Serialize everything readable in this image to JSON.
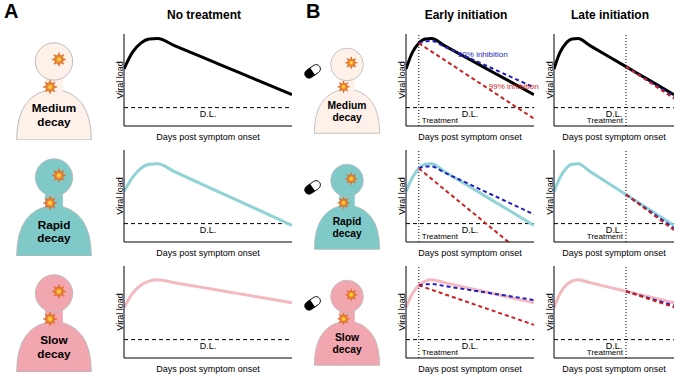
{
  "panel_labels": [
    "A",
    "B"
  ],
  "rows": [
    {
      "label": "Medium decay",
      "color": "#fdf1ea"
    },
    {
      "label": "Rapid decay",
      "color": "#7fc9c9"
    },
    {
      "label": "Slow decay",
      "color": "#f2a6b0"
    }
  ],
  "chart_data": [
    {
      "type": "line",
      "title": "No treatment",
      "x_label": "Days post symptom onset",
      "y_label": "Viral load",
      "x": [
        0,
        0.5,
        1,
        1.5,
        2,
        3,
        6,
        8,
        10
      ],
      "xlim": [
        0,
        10
      ],
      "ylim": [
        0,
        10
      ],
      "tick_labels": false,
      "series": [
        {
          "color": "#000000",
          "line_style": "solid",
          "values": [
            6.2,
            8.0,
            9.0,
            9.45,
            9.5,
            8.74,
            6.45,
            4.93,
            3.4
          ]
        }
      ],
      "annotations": [
        {
          "text": "D.L.",
          "y": 2,
          "line_style": "dashed"
        }
      ]
    },
    {
      "type": "line",
      "title": "Early initiation",
      "x_label": "Days post symptom onset",
      "y_label": "Viral load",
      "x": [
        0,
        0.5,
        1,
        1.5,
        2,
        3,
        6,
        8,
        10
      ],
      "xlim": [
        0,
        10
      ],
      "ylim": [
        0,
        10
      ],
      "tick_labels": false,
      "series": [
        {
          "color": "#000000",
          "line_style": "solid",
          "values": [
            6.2,
            8.0,
            9.0,
            9.45,
            9.5,
            8.74,
            6.45,
            4.93,
            3.4
          ]
        },
        {
          "name": "50% inhibition",
          "color": "#1f1fbf",
          "line_style": "dashed",
          "values": [
            null,
            null,
            9.0,
            9.2,
            9.25,
            8.62,
            6.73,
            5.46,
            4.2
          ]
        },
        {
          "name": "99% inhibition",
          "color": "#cc1f1f",
          "line_style": "dashed",
          "values": [
            null,
            null,
            9.0,
            8.54,
            8.09,
            7.18,
            4.44,
            2.62,
            0.8
          ]
        }
      ],
      "annotations": [
        {
          "text": "D.L.",
          "y": 2,
          "line_style": "dashed"
        },
        {
          "text": "Treatment",
          "x": 1,
          "line_style": "dotted"
        }
      ]
    },
    {
      "type": "line",
      "title": "Late initiation",
      "x_label": "Days post symptom onset",
      "y_label": "Viral load",
      "x": [
        0,
        0.5,
        1,
        1.5,
        2,
        3,
        6,
        8,
        10
      ],
      "xlim": [
        0,
        10
      ],
      "ylim": [
        0,
        10
      ],
      "tick_labels": false,
      "series": [
        {
          "color": "#000000",
          "line_style": "solid",
          "values": [
            6.2,
            8.0,
            9.0,
            9.45,
            9.5,
            8.74,
            6.45,
            4.93,
            3.4
          ]
        },
        {
          "color": "#1f1fbf",
          "line_style": "dashed",
          "values": [
            null,
            null,
            null,
            null,
            null,
            null,
            6.45,
            4.83,
            3.2
          ]
        },
        {
          "color": "#cc1f1f",
          "line_style": "dashed",
          "values": [
            null,
            null,
            null,
            null,
            null,
            null,
            6.45,
            4.73,
            3.0
          ]
        }
      ],
      "annotations": [
        {
          "text": "D.L.",
          "y": 2,
          "line_style": "dashed"
        },
        {
          "text": "Treatment",
          "x": 6,
          "line_style": "dotted"
        }
      ]
    },
    {
      "type": "line",
      "x_label": "Days post symptom onset",
      "y_label": "Viral load",
      "x": [
        0,
        0.5,
        1,
        1.5,
        2,
        3,
        6,
        8,
        10
      ],
      "xlim": [
        0,
        10
      ],
      "ylim": [
        0,
        10
      ],
      "tick_labels": false,
      "series": [
        {
          "color": "#8fd3d6",
          "line_style": "solid",
          "values": [
            5.5,
            7.0,
            8.0,
            8.45,
            8.5,
            7.66,
            5.15,
            3.48,
            1.8
          ]
        }
      ],
      "annotations": [
        {
          "text": "D.L.",
          "y": 2,
          "line_style": "dashed"
        }
      ]
    },
    {
      "type": "line",
      "x_label": "Days post symptom onset",
      "y_label": "Viral load",
      "x": [
        0,
        0.5,
        1,
        1.5,
        2,
        3,
        6,
        8,
        10
      ],
      "xlim": [
        0,
        10
      ],
      "ylim": [
        0,
        10
      ],
      "tick_labels": false,
      "series": [
        {
          "color": "#8fd3d6",
          "line_style": "solid",
          "values": [
            5.5,
            7.0,
            8.0,
            8.45,
            8.5,
            7.66,
            5.15,
            3.48,
            1.8
          ]
        },
        {
          "color": "#1f1fbf",
          "line_style": "dashed",
          "values": [
            null,
            null,
            8.0,
            8.2,
            8.2,
            7.55,
            5.6,
            4.3,
            3.0
          ]
        },
        {
          "color": "#cc1f1f",
          "line_style": "dashed",
          "values": [
            null,
            null,
            8.0,
            7.43,
            6.86,
            5.71,
            2.29,
            0,
            null
          ]
        }
      ],
      "annotations": [
        {
          "text": "D.L.",
          "y": 2,
          "line_style": "dashed"
        },
        {
          "text": "Treatment",
          "x": 1,
          "line_style": "dotted"
        }
      ]
    },
    {
      "type": "line",
      "x_label": "Days post symptom onset",
      "y_label": "Viral load",
      "x": [
        0,
        0.5,
        1,
        1.5,
        2,
        3,
        6,
        8,
        10
      ],
      "xlim": [
        0,
        10
      ],
      "ylim": [
        0,
        10
      ],
      "tick_labels": false,
      "series": [
        {
          "color": "#8fd3d6",
          "line_style": "solid",
          "values": [
            5.5,
            7.0,
            8.0,
            8.45,
            8.5,
            7.66,
            5.15,
            3.48,
            1.8
          ]
        },
        {
          "color": "#1f1fbf",
          "line_style": "dashed",
          "values": [
            null,
            null,
            null,
            null,
            null,
            null,
            5.15,
            3.33,
            1.5
          ]
        },
        {
          "color": "#cc1f1f",
          "line_style": "dashed",
          "values": [
            null,
            null,
            null,
            null,
            null,
            null,
            5.15,
            3.23,
            1.3
          ]
        }
      ],
      "annotations": [
        {
          "text": "D.L.",
          "y": 2,
          "line_style": "dashed"
        },
        {
          "text": "Treatment",
          "x": 6,
          "line_style": "dotted"
        }
      ]
    },
    {
      "type": "line",
      "x_label": "Days post symptom onset",
      "y_label": "Viral load",
      "x": [
        0,
        0.5,
        1,
        1.5,
        2,
        3,
        6,
        8,
        10
      ],
      "xlim": [
        0,
        10
      ],
      "ylim": [
        0,
        10
      ],
      "tick_labels": false,
      "series": [
        {
          "color": "#f4b8c0",
          "line_style": "solid",
          "values": [
            5.5,
            7.0,
            7.9,
            8.35,
            8.5,
            8.19,
            7.25,
            6.63,
            6.0
          ]
        }
      ],
      "annotations": [
        {
          "text": "D.L.",
          "y": 2,
          "line_style": "dashed"
        }
      ]
    },
    {
      "type": "line",
      "x_label": "Days post symptom onset",
      "y_label": "Viral load",
      "x": [
        0,
        0.5,
        1,
        1.5,
        2,
        3,
        6,
        8,
        10
      ],
      "xlim": [
        0,
        10
      ],
      "ylim": [
        0,
        10
      ],
      "tick_labels": false,
      "series": [
        {
          "color": "#f4b8c0",
          "line_style": "solid",
          "values": [
            5.5,
            7.0,
            7.9,
            8.35,
            8.5,
            8.19,
            7.25,
            6.63,
            6.0
          ]
        },
        {
          "color": "#1f1fbf",
          "line_style": "dashed",
          "values": [
            null,
            null,
            7.9,
            8.0,
            8.05,
            7.83,
            7.17,
            6.74,
            6.3
          ]
        },
        {
          "color": "#cc1f1f",
          "line_style": "dashed",
          "values": [
            null,
            null,
            7.9,
            7.66,
            7.42,
            6.94,
            5.51,
            4.56,
            3.6
          ]
        }
      ],
      "annotations": [
        {
          "text": "D.L.",
          "y": 2,
          "line_style": "dashed"
        },
        {
          "text": "Treatment",
          "x": 1,
          "line_style": "dotted"
        }
      ]
    },
    {
      "type": "line",
      "x_label": "Days post symptom onset",
      "y_label": "Viral load",
      "x": [
        0,
        0.5,
        1,
        1.5,
        2,
        3,
        6,
        8,
        10
      ],
      "xlim": [
        0,
        10
      ],
      "ylim": [
        0,
        10
      ],
      "tick_labels": false,
      "series": [
        {
          "color": "#f4b8c0",
          "line_style": "solid",
          "values": [
            5.5,
            7.0,
            7.9,
            8.35,
            8.5,
            8.19,
            7.25,
            6.63,
            6.0
          ]
        },
        {
          "color": "#1f1fbf",
          "line_style": "dashed",
          "values": [
            null,
            null,
            null,
            null,
            null,
            null,
            7.25,
            6.48,
            5.7
          ]
        },
        {
          "color": "#cc1f1f",
          "line_style": "dashed",
          "values": [
            null,
            null,
            null,
            null,
            null,
            null,
            7.25,
            6.38,
            5.5
          ]
        }
      ],
      "annotations": [
        {
          "text": "D.L.",
          "y": 2,
          "line_style": "dashed"
        },
        {
          "text": "Treatment",
          "x": 6,
          "line_style": "dotted"
        }
      ]
    }
  ]
}
